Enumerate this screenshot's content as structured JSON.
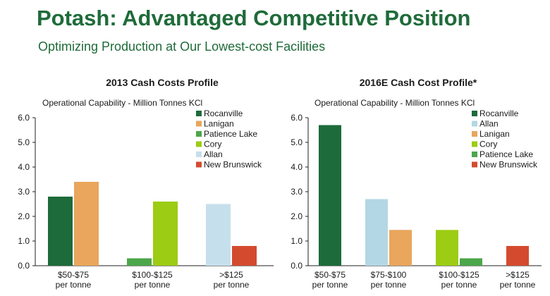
{
  "page": {
    "title": "Potash: Advantaged Competitive Position",
    "subtitle": "Optimizing Production at Our Lowest-cost Facilities"
  },
  "chart_data": [
    {
      "type": "bar",
      "title": "2013 Cash Costs Profile",
      "ylabel": "Operational Capability - Million Tonnes KCl",
      "ylim": [
        0,
        6
      ],
      "yticks": [
        "0.0",
        "1.0",
        "2.0",
        "3.0",
        "4.0",
        "5.0",
        "6.0"
      ],
      "legend": [
        {
          "name": "Rocanville",
          "color": "#1d6b3a"
        },
        {
          "name": "Lanigan",
          "color": "#e9a65c"
        },
        {
          "name": "Patience Lake",
          "color": "#4ca64a"
        },
        {
          "name": "Cory",
          "color": "#9ccc14"
        },
        {
          "name": "Allan",
          "color": "#c6dfec"
        },
        {
          "name": "New Brunswick",
          "color": "#d34b2f"
        }
      ],
      "groups": [
        {
          "label": [
            "$50-$75",
            "per tonne"
          ],
          "bars": [
            {
              "name": "Rocanville",
              "value": 2.8
            },
            {
              "name": "Lanigan",
              "value": 3.4
            }
          ]
        },
        {
          "label": [
            "$100-$125",
            "per tonne"
          ],
          "bars": [
            {
              "name": "Patience Lake",
              "value": 0.3
            },
            {
              "name": "Cory",
              "value": 2.6
            }
          ]
        },
        {
          "label": [
            ">$125",
            "per tonne"
          ],
          "bars": [
            {
              "name": "Allan",
              "value": 2.5
            },
            {
              "name": "New Brunswick",
              "value": 0.8
            }
          ]
        }
      ]
    },
    {
      "type": "bar",
      "title": "2016E Cash Cost Profile*",
      "ylabel": "Operational Capability - Million Tonnes KCl",
      "ylim": [
        0,
        6
      ],
      "yticks": [
        "0.0",
        "1.0",
        "2.0",
        "3.0",
        "4.0",
        "5.0",
        "6.0"
      ],
      "legend": [
        {
          "name": "Rocanville",
          "color": "#1d6b3a"
        },
        {
          "name": "Allan",
          "color": "#b3d7e4"
        },
        {
          "name": "Lanigan",
          "color": "#e9a65c"
        },
        {
          "name": "Cory",
          "color": "#9ccc14"
        },
        {
          "name": "Patience Lake",
          "color": "#4ca64a"
        },
        {
          "name": "New Brunswick",
          "color": "#d34b2f"
        }
      ],
      "groups": [
        {
          "label": [
            "$50-$75",
            "per tonne"
          ],
          "bars": [
            {
              "name": "Rocanville",
              "value": 5.7
            }
          ]
        },
        {
          "label": [
            "$75-$100",
            "per tonne"
          ],
          "bars": [
            {
              "name": "Allan",
              "value": 2.7
            },
            {
              "name": "Lanigan",
              "value": 1.45
            }
          ]
        },
        {
          "label": [
            "$100-$125",
            "per tonne"
          ],
          "bars": [
            {
              "name": "Cory",
              "value": 1.45
            },
            {
              "name": "Patience Lake",
              "value": 0.3
            }
          ]
        },
        {
          "label": [
            ">$125",
            "per tonne"
          ],
          "bars": [
            {
              "name": "New Brunswick",
              "value": 0.8
            }
          ]
        }
      ]
    }
  ]
}
